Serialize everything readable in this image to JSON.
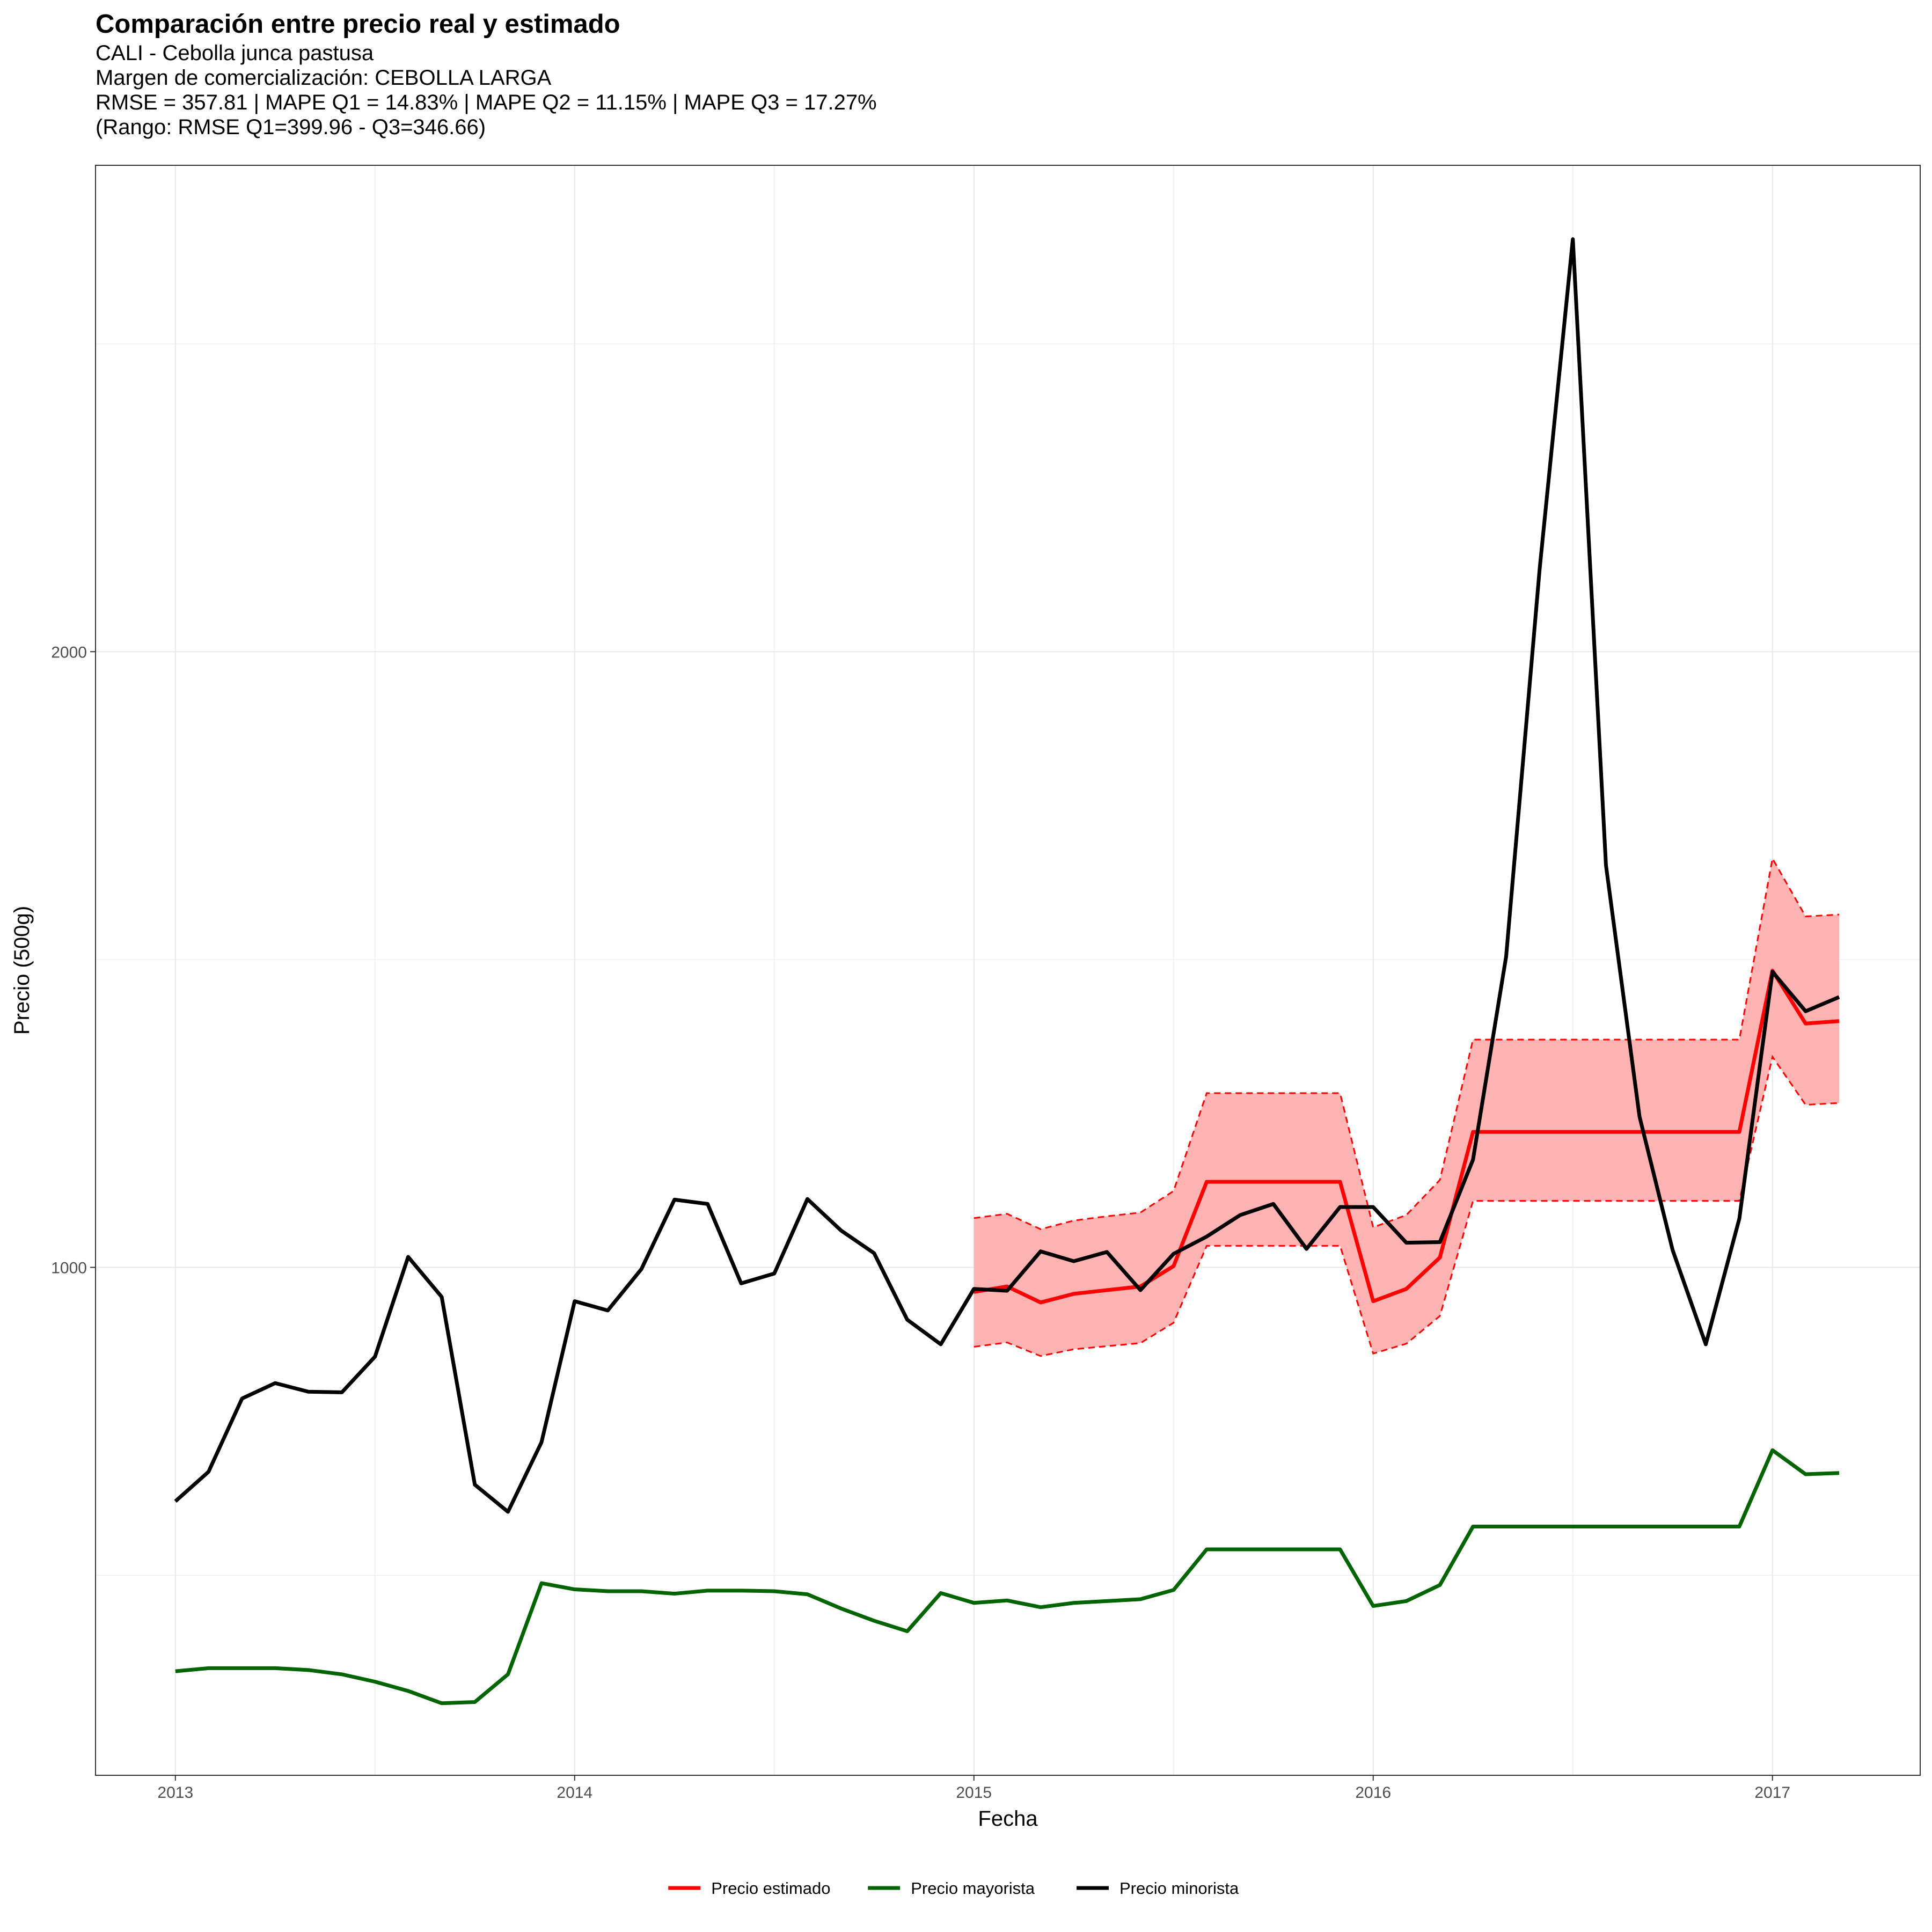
{
  "chart_data": {
    "type": "line",
    "title": "Comparación entre precio real y estimado",
    "subtitle_lines": [
      "CALI - Cebolla junca pastusa",
      "Margen de comercialización: CEBOLLA LARGA",
      "RMSE = 357.81 | MAPE Q1 = 14.83% | MAPE Q2 = 11.15% | MAPE Q3 = 17.27%",
      "(Rango: RMSE Q1=399.96 - Q3=346.66)"
    ],
    "xlabel": "Fecha",
    "ylabel": "Precio (500g)",
    "x_ticks": [
      "2013",
      "2014",
      "2015",
      "2016",
      "2017"
    ],
    "x_tick_values": [
      2013,
      2014,
      2015,
      2016,
      2017
    ],
    "y_ticks": [
      "1000",
      "2000"
    ],
    "y_tick_values": [
      1000,
      2000
    ],
    "xlim": [
      2012.8,
      2017.37
    ],
    "ylim": [
      175,
      2790
    ],
    "grid": true,
    "legend_position": "bottom",
    "series": [
      {
        "name": "Precio minorista",
        "color": "#000000",
        "x": [
          2013.0,
          2013.083,
          2013.167,
          2013.25,
          2013.333,
          2013.417,
          2013.5,
          2013.583,
          2013.667,
          2013.75,
          2013.833,
          2013.917,
          2014.0,
          2014.083,
          2014.167,
          2014.25,
          2014.333,
          2014.417,
          2014.5,
          2014.583,
          2014.667,
          2014.75,
          2014.833,
          2014.917,
          2015.0,
          2015.083,
          2015.167,
          2015.25,
          2015.333,
          2015.417,
          2015.5,
          2015.583,
          2015.667,
          2015.75,
          2015.833,
          2015.917,
          2016.0,
          2016.083,
          2016.167,
          2016.25,
          2016.333,
          2016.417,
          2016.5,
          2016.583,
          2016.667,
          2016.75,
          2016.833,
          2016.917,
          2017.0,
          2017.083,
          2017.167
        ],
        "values": [
          620,
          668,
          787,
          812,
          798,
          797,
          855,
          1017,
          952,
          647,
          603,
          716,
          945,
          930,
          997,
          1110,
          1103,
          974,
          990,
          1111,
          1060,
          1023,
          915,
          875,
          965,
          962,
          1026,
          1010,
          1025,
          963,
          1022,
          1050,
          1085,
          1103,
          1030,
          1098,
          1098,
          1040,
          1041,
          1175,
          1505,
          2135,
          2670,
          1653,
          1245,
          1028,
          875,
          1079,
          1480,
          1416,
          1439
        ]
      },
      {
        "name": "Precio estimado",
        "color": "#ff0000",
        "x": [
          2015.0,
          2015.083,
          2015.167,
          2015.25,
          2015.333,
          2015.417,
          2015.5,
          2015.583,
          2015.667,
          2015.75,
          2015.833,
          2015.917,
          2016.0,
          2016.083,
          2016.167,
          2016.25,
          2016.333,
          2016.417,
          2016.5,
          2016.583,
          2016.667,
          2016.75,
          2016.833,
          2016.917,
          2017.0,
          2017.083,
          2017.167
        ],
        "values": [
          960,
          969,
          943,
          957,
          963,
          969,
          1002,
          1139,
          1139,
          1139,
          1139,
          1139,
          945,
          965,
          1016,
          1220,
          1220,
          1220,
          1220,
          1220,
          1220,
          1220,
          1220,
          1220,
          1482,
          1396,
          1400
        ]
      },
      {
        "name": "Precio mayorista",
        "color": "#006400",
        "x": [
          2013.0,
          2013.083,
          2013.167,
          2013.25,
          2013.333,
          2013.417,
          2013.5,
          2013.583,
          2013.667,
          2013.75,
          2013.833,
          2013.917,
          2014.0,
          2014.083,
          2014.167,
          2014.25,
          2014.333,
          2014.417,
          2014.5,
          2014.583,
          2014.667,
          2014.75,
          2014.833,
          2014.917,
          2015.0,
          2015.083,
          2015.167,
          2015.25,
          2015.333,
          2015.417,
          2015.5,
          2015.583,
          2015.667,
          2015.75,
          2015.833,
          2015.917,
          2016.0,
          2016.083,
          2016.167,
          2016.25,
          2016.333,
          2016.417,
          2016.5,
          2016.583,
          2016.667,
          2016.75,
          2016.833,
          2016.917,
          2017.0,
          2017.083,
          2017.167
        ],
        "values": [
          344,
          349,
          349,
          349,
          346,
          339,
          327,
          312,
          292,
          294,
          339,
          487,
          477,
          474,
          474,
          470,
          475,
          475,
          474,
          469,
          446,
          426,
          409,
          471,
          455,
          459,
          448,
          455,
          458,
          461,
          476,
          542,
          542,
          542,
          542,
          542,
          450,
          458,
          484,
          579,
          579,
          579,
          579,
          579,
          579,
          579,
          579,
          579,
          703,
          664,
          666
        ]
      }
    ],
    "interval": {
      "color": "#ff0000",
      "fill": "#ffb3b3",
      "x": [
        2015.0,
        2015.083,
        2015.167,
        2015.25,
        2015.333,
        2015.417,
        2015.5,
        2015.583,
        2015.667,
        2015.75,
        2015.833,
        2015.917,
        2016.0,
        2016.083,
        2016.167,
        2016.25,
        2016.333,
        2016.417,
        2016.5,
        2016.583,
        2016.667,
        2016.75,
        2016.833,
        2016.917,
        2017.0,
        2017.083,
        2017.167
      ],
      "upper": [
        1080,
        1087,
        1062,
        1076,
        1083,
        1089,
        1124,
        1283,
        1283,
        1283,
        1283,
        1283,
        1065,
        1085,
        1142,
        1370,
        1370,
        1370,
        1370,
        1370,
        1370,
        1370,
        1370,
        1370,
        1664,
        1570,
        1573
      ],
      "lower": [
        871,
        878,
        856,
        867,
        872,
        877,
        910,
        1035,
        1035,
        1035,
        1035,
        1035,
        860,
        876,
        921,
        1108,
        1108,
        1108,
        1108,
        1108,
        1108,
        1108,
        1108,
        1108,
        1342,
        1264,
        1267
      ]
    },
    "legend": [
      {
        "label": "Precio estimado",
        "color": "#ff0000"
      },
      {
        "label": "Precio mayorista",
        "color": "#006400"
      },
      {
        "label": "Precio minorista",
        "color": "#000000"
      }
    ]
  }
}
